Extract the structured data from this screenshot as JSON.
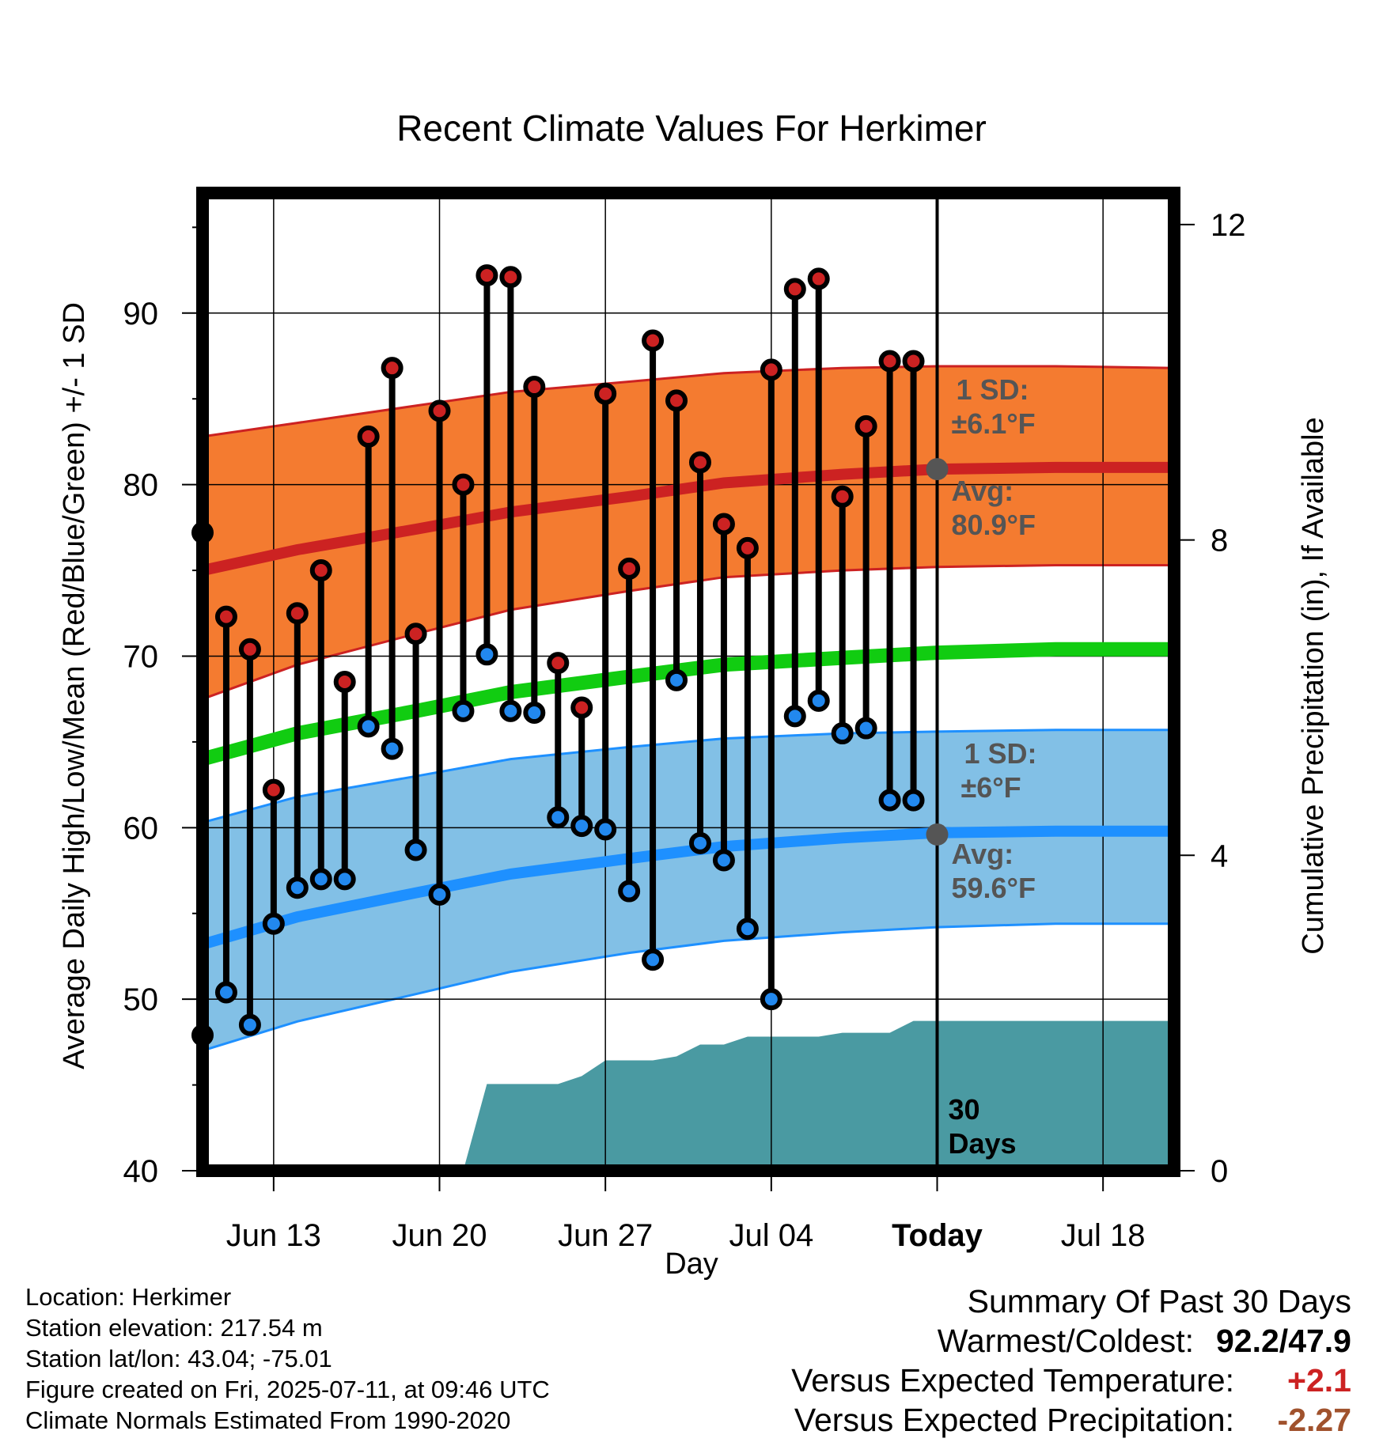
{
  "chart_data": {
    "type": "line",
    "title": "Recent Climate Values For Herkimer",
    "xlabel": "Day",
    "ylabel": "Average Daily High/Low/Mean (Red/Blue/Green) +/- 1 SD",
    "ylabel_right": "Cumulative Precipitation (in), If Available",
    "ylim": [
      40,
      97
    ],
    "y_ticks": [
      "40",
      "50",
      "60",
      "70",
      "80",
      "90"
    ],
    "y2lim": [
      0,
      12.4
    ],
    "y2_ticks": [
      "0",
      "4",
      "8",
      "12"
    ],
    "x_range": [
      "Jun 10",
      "Jul 21"
    ],
    "x_ticks": [
      {
        "date": "Jun 13",
        "label": "Jun 13"
      },
      {
        "date": "Jun 20",
        "label": "Jun 20"
      },
      {
        "date": "Jun 27",
        "label": "Jun 27"
      },
      {
        "date": "Jul 04",
        "label": "Jul 04"
      },
      {
        "date": "Jul 11",
        "label": "Today"
      },
      {
        "date": "Jul 18",
        "label": "Jul 18"
      }
    ],
    "today": "Jul 11",
    "grid": true,
    "observations": {
      "dates": [
        "Jun 10",
        "Jun 11",
        "Jun 12",
        "Jun 13",
        "Jun 14",
        "Jun 15",
        "Jun 16",
        "Jun 17",
        "Jun 18",
        "Jun 19",
        "Jun 20",
        "Jun 21",
        "Jun 22",
        "Jun 23",
        "Jun 24",
        "Jun 25",
        "Jun 26",
        "Jun 27",
        "Jun 28",
        "Jun 29",
        "Jun 30",
        "Jul 01",
        "Jul 02",
        "Jul 03",
        "Jul 04",
        "Jul 05",
        "Jul 06",
        "Jul 07",
        "Jul 08",
        "Jul 09",
        "Jul 10"
      ],
      "high": [
        77.2,
        72.3,
        70.4,
        62.2,
        72.5,
        75.0,
        68.5,
        82.8,
        86.8,
        71.3,
        84.3,
        80.0,
        92.2,
        92.1,
        85.7,
        69.6,
        67.0,
        85.3,
        75.1,
        88.4,
        84.9,
        81.3,
        77.7,
        76.3,
        86.7,
        91.4,
        92.0,
        79.3,
        83.4,
        87.2,
        87.2
      ],
      "low": [
        47.9,
        50.4,
        48.5,
        54.4,
        56.5,
        57.0,
        57.0,
        65.9,
        64.6,
        58.7,
        56.1,
        66.8,
        70.1,
        66.8,
        66.7,
        60.6,
        60.1,
        59.9,
        56.3,
        52.3,
        68.6,
        59.1,
        58.1,
        54.1,
        50.0,
        66.5,
        67.4,
        65.5,
        65.8,
        61.6,
        61.6
      ],
      "high_color": "#cc2222",
      "low_color": "#2288ee"
    },
    "normals": {
      "high_mean": [
        75.0,
        76.2,
        77.4,
        78.4,
        79.3,
        80.1,
        80.6,
        80.9,
        81.0,
        81.0
      ],
      "high_sd_band": {
        "lower": [
          67.5,
          69.5,
          71.3,
          72.7,
          73.8,
          74.6,
          75.0,
          75.2,
          75.3,
          75.3
        ],
        "upper": [
          82.8,
          83.6,
          84.6,
          85.4,
          86.0,
          86.5,
          86.8,
          86.9,
          86.9,
          86.8
        ]
      },
      "mean": [
        64.0,
        65.5,
        66.8,
        67.9,
        68.8,
        69.5,
        69.9,
        70.2,
        70.4,
        70.4
      ],
      "low_mean": [
        53.2,
        54.8,
        56.2,
        57.3,
        58.2,
        58.9,
        59.4,
        59.7,
        59.8,
        59.8
      ],
      "low_sd_band": {
        "lower": [
          47.0,
          48.7,
          50.3,
          51.6,
          52.7,
          53.4,
          53.9,
          54.2,
          54.4,
          54.4
        ],
        "upper": [
          60.3,
          61.8,
          63.0,
          64.0,
          64.7,
          65.2,
          65.5,
          65.6,
          65.7,
          65.7
        ]
      },
      "dates": [
        "Jun 10",
        "Jun 14",
        "Jun 19",
        "Jun 23",
        "Jun 28",
        "Jul 02",
        "Jul 07",
        "Jul 11",
        "Jul 16",
        "Jul 21"
      ],
      "high_color": "#cc2222",
      "high_band_color": "#f47b30",
      "mean_color": "#11cc11",
      "low_color": "#1e90ff",
      "low_band_color": "#82c0e6"
    },
    "precipitation": {
      "dates": [
        "Jun 21",
        "Jun 22",
        "Jun 23",
        "Jun 24",
        "Jun 25",
        "Jun 26",
        "Jun 27",
        "Jun 28",
        "Jun 29",
        "Jun 30",
        "Jul 01",
        "Jul 02",
        "Jul 03",
        "Jul 04",
        "Jul 05",
        "Jul 06",
        "Jul 07",
        "Jul 08",
        "Jul 09",
        "Jul 10",
        "Jul 21"
      ],
      "cumulative": [
        0.0,
        1.1,
        1.1,
        1.1,
        1.1,
        1.2,
        1.4,
        1.4,
        1.4,
        1.45,
        1.6,
        1.6,
        1.7,
        1.7,
        1.7,
        1.7,
        1.75,
        1.75,
        1.75,
        1.9,
        1.9
      ],
      "color": "#4a9aa2",
      "label_line1": "30",
      "label_line2": "Days"
    },
    "annotations": {
      "high_sd_line1": "1 SD:",
      "high_sd_line2": "±6.1°F",
      "high_avg_line1": "Avg:",
      "high_avg_line2": "80.9°F",
      "high_avg_value": 80.9,
      "low_sd_line1": "1 SD:",
      "low_sd_line2": "±6°F",
      "low_avg_line1": "Avg:",
      "low_avg_line2": "59.6°F",
      "low_avg_value": 59.6,
      "text_color": "#555555"
    }
  },
  "footer": {
    "location": "Location: Herkimer",
    "elevation": "Station elevation: 217.54 m",
    "latlon": "Station lat/lon: 43.04; -75.01",
    "created": "Figure created on Fri, 2025-07-11, at 09:46 UTC",
    "normals": "Climate Normals Estimated From 1990-2020"
  },
  "summary": {
    "heading": "Summary Of Past 30 Days",
    "warmest_label": "Warmest/Coldest:",
    "warmest_value": "92.2/47.9",
    "temp_label": "Versus Expected Temperature:",
    "temp_value": "+2.1",
    "temp_color": "#cc2222",
    "precip_label": "Versus Expected Precipitation:",
    "precip_value": "-2.27",
    "precip_color": "#a0522d"
  }
}
